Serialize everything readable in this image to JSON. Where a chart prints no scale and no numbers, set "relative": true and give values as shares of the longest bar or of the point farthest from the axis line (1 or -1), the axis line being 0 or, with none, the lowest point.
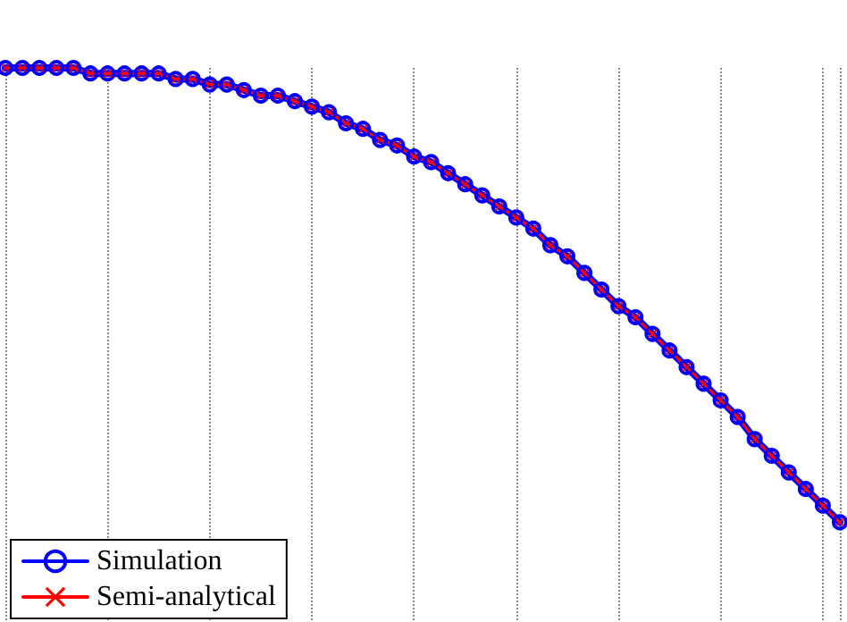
{
  "chart_data": {
    "type": "line",
    "relative": true,
    "categories": [
      null,
      null,
      null,
      null,
      null,
      null,
      null,
      null,
      null,
      null,
      null,
      null,
      null,
      null,
      null,
      null,
      null,
      null,
      null,
      null,
      null,
      null,
      null,
      null,
      null,
      null,
      null,
      null,
      null,
      null,
      null,
      null,
      null,
      null,
      null,
      null,
      null,
      null,
      null,
      null,
      null,
      null,
      null,
      null,
      null,
      null,
      null,
      null,
      null,
      null
    ],
    "series": [
      {
        "name": "Simulation",
        "color": "#0000ff",
        "marker": "circle",
        "values": [
          1.0,
          1.0,
          1.0,
          1.0,
          1.0,
          0.99,
          0.99,
          0.99,
          0.99,
          0.99,
          0.98,
          0.98,
          0.97,
          0.97,
          0.96,
          0.95,
          0.95,
          0.94,
          0.93,
          0.92,
          0.9,
          0.89,
          0.87,
          0.86,
          0.84,
          0.83,
          0.81,
          0.79,
          0.77,
          0.75,
          0.73,
          0.71,
          0.68,
          0.66,
          0.63,
          0.6,
          0.57,
          0.55,
          0.52,
          0.49,
          0.46,
          0.43,
          0.4,
          0.37,
          0.33,
          0.3,
          0.27,
          0.24,
          0.21,
          0.18
        ]
      },
      {
        "name": "Semi-analytical",
        "color": "#ff0000",
        "marker": "cross",
        "values": [
          1.0,
          1.0,
          1.0,
          1.0,
          1.0,
          0.99,
          0.99,
          0.99,
          0.99,
          0.99,
          0.98,
          0.98,
          0.97,
          0.97,
          0.96,
          0.95,
          0.95,
          0.94,
          0.93,
          0.92,
          0.9,
          0.89,
          0.87,
          0.86,
          0.84,
          0.83,
          0.81,
          0.79,
          0.77,
          0.75,
          0.73,
          0.71,
          0.68,
          0.66,
          0.63,
          0.6,
          0.57,
          0.55,
          0.52,
          0.49,
          0.46,
          0.43,
          0.4,
          0.37,
          0.33,
          0.3,
          0.27,
          0.24,
          0.21,
          0.18
        ]
      }
    ],
    "grid": "x",
    "legend": "bottom left",
    "line_style": "solid"
  }
}
